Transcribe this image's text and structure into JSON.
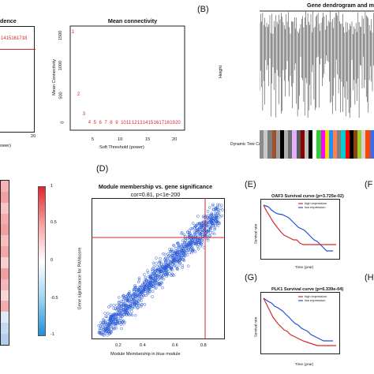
{
  "panelA": {
    "left_title_fragment": "dence",
    "left_labels": "1415161718",
    "left_labels_tail": "171019",
    "left_labels_tail2": "20",
    "left_ticks_x": [
      "10",
      "15",
      "20"
    ],
    "left_xlabel_fragment": "ower)",
    "mc_title": "Mean connectivity",
    "mc_ylabel": "Mean Connectivity",
    "mc_xlabel": "Soft Threshold (power)",
    "mc_yticks": [
      "0",
      "500",
      "1000",
      "1500"
    ],
    "mc_xticks": [
      "5",
      "10",
      "15",
      "20"
    ],
    "mc_points": [
      {
        "label": "1",
        "x": 1,
        "y": 1560
      },
      {
        "label": "2",
        "x": 2,
        "y": 560
      },
      {
        "label": "3",
        "x": 3,
        "y": 240
      },
      {
        "label": "4",
        "x": 4,
        "y": 110
      },
      {
        "label": "5",
        "x": 5,
        "y": 55
      },
      {
        "label": "6",
        "x": 6,
        "y": 30
      },
      {
        "label": "7",
        "x": 7,
        "y": 18
      },
      {
        "label": "8",
        "x": 8,
        "y": 12
      },
      {
        "label": "9",
        "x": 9,
        "y": 8
      },
      {
        "label": "10",
        "x": 10,
        "y": 6
      },
      {
        "label": "11",
        "x": 11,
        "y": 4
      },
      {
        "label": "12",
        "x": 12,
        "y": 3
      },
      {
        "label": "13",
        "x": 13,
        "y": 2
      },
      {
        "label": "14",
        "x": 14,
        "y": 2
      },
      {
        "label": "15",
        "x": 15,
        "y": 1
      },
      {
        "label": "16",
        "x": 16,
        "y": 1
      },
      {
        "label": "17",
        "x": 17,
        "y": 1
      },
      {
        "label": "18",
        "x": 18,
        "y": 1
      },
      {
        "label": "19",
        "x": 19,
        "y": 1
      },
      {
        "label": "20",
        "x": 20,
        "y": 1
      }
    ]
  },
  "panelB": {
    "letter": "(B)",
    "title": "Gene dendrogram and mo",
    "ylabel": "Height",
    "row_label": "Dynamic Tree Cut",
    "yticks": [
      "0.2",
      "0.4",
      "0.6",
      "0.8",
      "1.0"
    ]
  },
  "panelC": {
    "colorbar_ticks": [
      "1",
      "0.5",
      "0",
      "-0.5",
      "-1"
    ]
  },
  "panelD": {
    "letter": "(D)",
    "title": "Module membership vs. gene significance",
    "subtitle": "cor=0.81, p<1e-200",
    "xlabel": "Module Membership in blue module",
    "ylabel": "Gene significance for PANscore",
    "xticks": [
      "0.2",
      "0.4",
      "0.6",
      "0.8"
    ]
  },
  "panelE": {
    "letter": "(E)",
    "title": "OAF3 Survival curve (p=3.725e-02)",
    "legend_high": "high expression",
    "legend_low": "low expression",
    "ylabel": "Survival rate",
    "xlabel": "Time (year)",
    "xticks": [
      "0",
      "1",
      "2",
      "3",
      "4",
      "5",
      "6",
      "7",
      "8",
      "9",
      "10"
    ],
    "yticks": [
      "0",
      "0.2",
      "0.4",
      "0.6",
      "0.8",
      "1.0"
    ]
  },
  "panelF": {
    "letter": "(F"
  },
  "panelG": {
    "letter": "(G)",
    "title": "PLK1 Survival curve (p=6.339e-04)",
    "legend_high": "high expression",
    "legend_low": "low expression",
    "ylabel": "Survival rate",
    "xlabel": "Time (year)",
    "xticks": [
      "0",
      "1",
      "2",
      "3",
      "4",
      "5",
      "6",
      "7",
      "8",
      "9",
      "10"
    ],
    "yticks": [
      "0",
      "0.2",
      "0.4",
      "0.6",
      "0.8",
      "1.0"
    ]
  },
  "panelH": {
    "letter": "(H"
  },
  "colors": {
    "red": "#d62728",
    "blue": "#1f4fd6",
    "scatter_edge": "#2a5bd7"
  }
}
